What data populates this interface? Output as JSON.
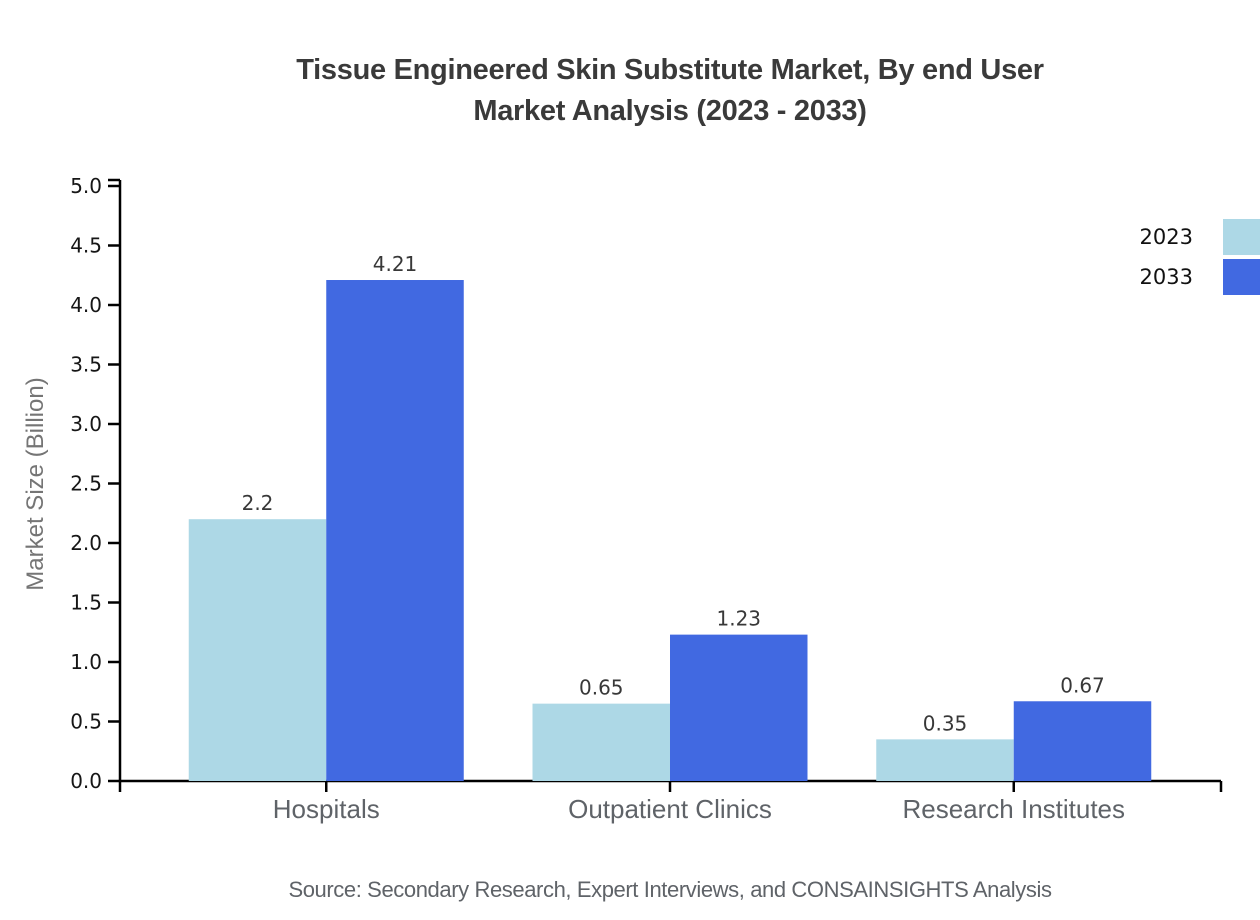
{
  "title": {
    "line1": "Tissue Engineered Skin Substitute Market, By end User",
    "line2": "Market Analysis (2023 - 2033)"
  },
  "source_note": "Source: Secondary Research, Expert Interviews, and CONSAINSIGHTS Analysis",
  "chart_data": {
    "type": "bar",
    "title": "Tissue Engineered Skin Substitute Market, By end User Market Analysis (2023 - 2033)",
    "categories": [
      "Hospitals",
      "Outpatient Clinics",
      "Research Institutes"
    ],
    "series": [
      {
        "name": "2023",
        "color": "#ADD8E6",
        "values": [
          2.2,
          0.65,
          0.35
        ],
        "value_labels": [
          "2.2",
          "0.65",
          "0.35"
        ]
      },
      {
        "name": "2033",
        "color": "#4169E1",
        "values": [
          4.21,
          1.23,
          0.67
        ],
        "value_labels": [
          "4.21",
          "1.23",
          "0.67"
        ]
      }
    ],
    "xlabel": "",
    "ylabel": "Market Size (Billion)",
    "ylim": [
      0,
      5
    ],
    "yticks": [
      "0.0",
      "0.5",
      "1.0",
      "1.5",
      "2.0",
      "2.5",
      "3.0",
      "3.5",
      "4.0",
      "4.5",
      "5.0"
    ],
    "grid": false,
    "legend_position": "top-right"
  }
}
